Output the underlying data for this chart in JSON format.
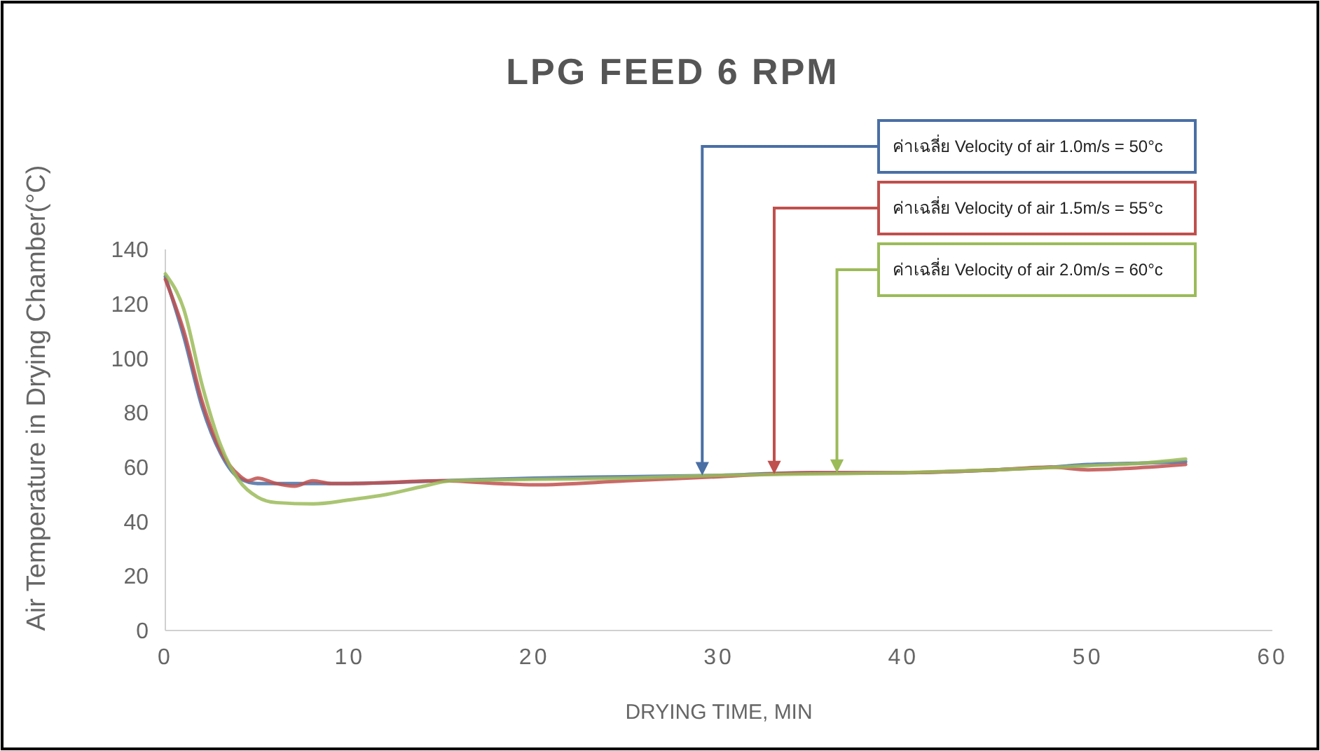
{
  "chart_data": {
    "type": "line",
    "title": "LPG FEED 6 RPM",
    "xlabel": "DRYING TIME, MIN",
    "ylabel": "Air Temperature in Drying Chamber(°C)",
    "xlim": [
      0,
      60
    ],
    "xticks": [
      0,
      10,
      20,
      30,
      40,
      50,
      60
    ],
    "ylim": [
      0,
      140
    ],
    "yticks": [
      0,
      20,
      40,
      60,
      80,
      100,
      120,
      140
    ],
    "grid": false,
    "marker": "none",
    "line_style": "solid",
    "series": [
      {
        "color": "#4a6fa5",
        "x": [
          0,
          1,
          2,
          3,
          4,
          5,
          6,
          8,
          10,
          15,
          20,
          25,
          30,
          35,
          40,
          45,
          48,
          50,
          53,
          55.3
        ],
        "values": [
          130,
          108,
          82,
          65,
          56,
          54,
          54,
          54,
          54,
          55,
          56,
          56.5,
          57,
          58,
          58,
          59,
          60,
          61,
          61.5,
          62
        ]
      },
      {
        "color": "#c0504d",
        "x": [
          0,
          1,
          2,
          3,
          4,
          4.5,
          5,
          6,
          7,
          8,
          9,
          10,
          15,
          18,
          20,
          25,
          30,
          35,
          40,
          45,
          48,
          50,
          52,
          55.3
        ],
        "values": [
          129,
          110,
          84,
          66,
          57,
          55,
          56,
          54,
          53,
          55,
          54,
          54,
          55,
          54,
          53.5,
          55,
          56.5,
          58,
          58,
          59,
          60,
          59,
          59.5,
          61
        ]
      },
      {
        "color": "#9bbb59",
        "x": [
          0,
          1,
          2,
          3,
          4,
          5,
          6,
          8,
          10,
          12,
          14,
          15.5,
          20,
          25,
          30,
          35,
          40,
          45,
          50,
          53,
          55.3
        ],
        "values": [
          131,
          118,
          90,
          68,
          55,
          49,
          47,
          46.5,
          48,
          50,
          53,
          55,
          55.5,
          56,
          57,
          57.5,
          58,
          59,
          60.5,
          61.5,
          63
        ]
      }
    ],
    "annotations": [
      {
        "text": "ค่าเฉลี่ย Velocity of air 1.0m/s = 50°c",
        "x": 29.1,
        "y": 57.5
      },
      {
        "text": "ค่าเฉลี่ย Velocity of air 1.5m/s = 55°c",
        "x": 33,
        "y": 58
      },
      {
        "text": "ค่าเฉลี่ย Velocity of air 2.0m/s = 60°c",
        "x": 36.4,
        "y": 58.5
      }
    ]
  }
}
